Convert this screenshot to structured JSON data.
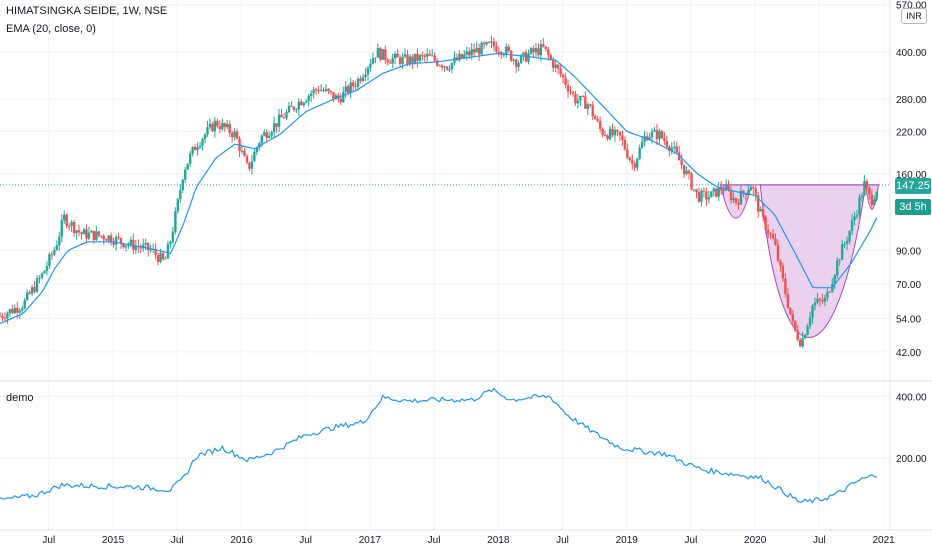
{
  "header": {
    "symbol_line": "HIMATSINGKA SEIDE, 1W, NSE",
    "indicator_line": "EMA (20, close, 0)",
    "currency": "INR"
  },
  "lower_pane": {
    "title": "demo"
  },
  "price_label": "147.25",
  "countdown_label": "3d 5h",
  "colors": {
    "up": "#26a69a",
    "down": "#ef5350",
    "ema": "#2196f3",
    "pattern_fill": "#e1bee7",
    "pattern_stroke": "#ab47bc",
    "grid": "#f0f3fa",
    "price_line": "#26a69a"
  },
  "chart_data": [
    {
      "type": "candlestick",
      "title": "HIMATSINGKA SEIDE, 1W, NSE",
      "scale": "log",
      "y_ticks": [
        42,
        54,
        70,
        90,
        160,
        220,
        280,
        400,
        570
      ],
      "y_tick_labels": [
        "42.00",
        "54.00",
        "70.00",
        "90.00",
        "160.00",
        "220.00",
        "280.00",
        "400.00",
        "570.00"
      ],
      "x_tick_labels": [
        "Jul",
        "2015",
        "Jul",
        "2016",
        "Jul",
        "2017",
        "Jul",
        "2018",
        "Jul",
        "2019",
        "Jul",
        "2020",
        "Jul",
        "2021"
      ],
      "x_ticks": [
        2014.5,
        2015,
        2015.5,
        2016,
        2016.5,
        2017,
        2017.5,
        2018,
        2018.5,
        2019,
        2019.5,
        2020,
        2020.5,
        2021
      ],
      "x_range": [
        2014.12,
        2021.05
      ],
      "y_range": [
        34,
        590
      ],
      "price_keypoints": [
        [
          2014.12,
          55
        ],
        [
          2014.3,
          60
        ],
        [
          2014.45,
          75
        ],
        [
          2014.55,
          92
        ],
        [
          2014.62,
          115
        ],
        [
          2014.75,
          102
        ],
        [
          2014.95,
          100
        ],
        [
          2015.1,
          95
        ],
        [
          2015.3,
          90
        ],
        [
          2015.4,
          82
        ],
        [
          2015.45,
          98
        ],
        [
          2015.5,
          125
        ],
        [
          2015.55,
          165
        ],
        [
          2015.65,
          200
        ],
        [
          2015.8,
          235
        ],
        [
          2015.95,
          215
        ],
        [
          2016.05,
          165
        ],
        [
          2016.15,
          210
        ],
        [
          2016.3,
          240
        ],
        [
          2016.45,
          275
        ],
        [
          2016.6,
          305
        ],
        [
          2016.75,
          280
        ],
        [
          2016.9,
          320
        ],
        [
          2017.05,
          400
        ],
        [
          2017.15,
          380
        ],
        [
          2017.3,
          375
        ],
        [
          2017.45,
          385
        ],
        [
          2017.6,
          360
        ],
        [
          2017.7,
          380
        ],
        [
          2017.8,
          400
        ],
        [
          2017.95,
          420
        ],
        [
          2018.05,
          405
        ],
        [
          2018.15,
          370
        ],
        [
          2018.25,
          395
        ],
        [
          2018.35,
          410
        ],
        [
          2018.5,
          330
        ],
        [
          2018.6,
          280
        ],
        [
          2018.7,
          270
        ],
        [
          2018.8,
          220
        ],
        [
          2018.95,
          210
        ],
        [
          2019.05,
          170
        ],
        [
          2019.15,
          215
        ],
        [
          2019.25,
          215
        ],
        [
          2019.35,
          195
        ],
        [
          2019.45,
          165
        ],
        [
          2019.55,
          135
        ],
        [
          2019.65,
          135
        ],
        [
          2019.75,
          145
        ],
        [
          2019.85,
          130
        ],
        [
          2019.97,
          148
        ],
        [
          2020.05,
          115
        ],
        [
          2020.15,
          95
        ],
        [
          2020.22,
          70
        ],
        [
          2020.3,
          50
        ],
        [
          2020.36,
          45
        ],
        [
          2020.45,
          60
        ],
        [
          2020.55,
          62
        ],
        [
          2020.65,
          85
        ],
        [
          2020.72,
          100
        ],
        [
          2020.8,
          125
        ],
        [
          2020.85,
          148
        ],
        [
          2020.9,
          130
        ],
        [
          2020.96,
          147
        ]
      ],
      "ema_keypoints": [
        [
          2014.12,
          52
        ],
        [
          2014.3,
          56
        ],
        [
          2014.45,
          66
        ],
        [
          2014.55,
          79
        ],
        [
          2014.65,
          90
        ],
        [
          2014.8,
          96
        ],
        [
          2015.0,
          96
        ],
        [
          2015.3,
          91
        ],
        [
          2015.45,
          88
        ],
        [
          2015.55,
          110
        ],
        [
          2015.65,
          145
        ],
        [
          2015.8,
          180
        ],
        [
          2015.95,
          200
        ],
        [
          2016.1,
          193
        ],
        [
          2016.3,
          215
        ],
        [
          2016.5,
          255
        ],
        [
          2016.7,
          278
        ],
        [
          2016.9,
          300
        ],
        [
          2017.1,
          340
        ],
        [
          2017.3,
          365
        ],
        [
          2017.55,
          372
        ],
        [
          2017.8,
          385
        ],
        [
          2018.0,
          395
        ],
        [
          2018.25,
          385
        ],
        [
          2018.45,
          375
        ],
        [
          2018.6,
          330
        ],
        [
          2018.8,
          270
        ],
        [
          2019.0,
          220
        ],
        [
          2019.2,
          205
        ],
        [
          2019.4,
          185
        ],
        [
          2019.55,
          160
        ],
        [
          2019.7,
          145
        ],
        [
          2019.85,
          140
        ],
        [
          2020.0,
          136
        ],
        [
          2020.15,
          118
        ],
        [
          2020.3,
          90
        ],
        [
          2020.45,
          68
        ],
        [
          2020.6,
          68
        ],
        [
          2020.75,
          82
        ],
        [
          2020.9,
          105
        ],
        [
          2020.96,
          118
        ]
      ],
      "last_close": 147.25,
      "annotations": [
        "cup-and-handle pattern drawing (shaded)"
      ]
    },
    {
      "type": "line",
      "title": "demo",
      "scale": "log",
      "y_ticks": [
        200,
        400
      ],
      "y_tick_labels": [
        "200.00",
        "400.00"
      ],
      "x_range": [
        2014.12,
        2021.05
      ],
      "y_range": [
        100,
        470
      ],
      "series": [
        {
          "values_keypoints": [
            [
              2014.12,
              125
            ],
            [
              2014.4,
              132
            ],
            [
              2014.6,
              148
            ],
            [
              2014.9,
              146
            ],
            [
              2015.2,
              145
            ],
            [
              2015.45,
              140
            ],
            [
              2015.55,
              160
            ],
            [
              2015.65,
              205
            ],
            [
              2015.85,
              225
            ],
            [
              2016.05,
              195
            ],
            [
              2016.25,
              215
            ],
            [
              2016.5,
              260
            ],
            [
              2016.75,
              285
            ],
            [
              2016.95,
              300
            ],
            [
              2017.1,
              395
            ],
            [
              2017.3,
              380
            ],
            [
              2017.55,
              385
            ],
            [
              2017.8,
              385
            ],
            [
              2017.95,
              430
            ],
            [
              2018.1,
              385
            ],
            [
              2018.25,
              395
            ],
            [
              2018.4,
              400
            ],
            [
              2018.55,
              320
            ],
            [
              2018.75,
              265
            ],
            [
              2018.95,
              225
            ],
            [
              2019.15,
              215
            ],
            [
              2019.3,
              210
            ],
            [
              2019.45,
              190
            ],
            [
              2019.6,
              175
            ],
            [
              2019.75,
              170
            ],
            [
              2019.9,
              165
            ],
            [
              2020.05,
              160
            ],
            [
              2020.2,
              140
            ],
            [
              2020.35,
              122
            ],
            [
              2020.5,
              125
            ],
            [
              2020.65,
              135
            ],
            [
              2020.8,
              155
            ],
            [
              2020.96,
              168
            ]
          ]
        }
      ]
    }
  ]
}
